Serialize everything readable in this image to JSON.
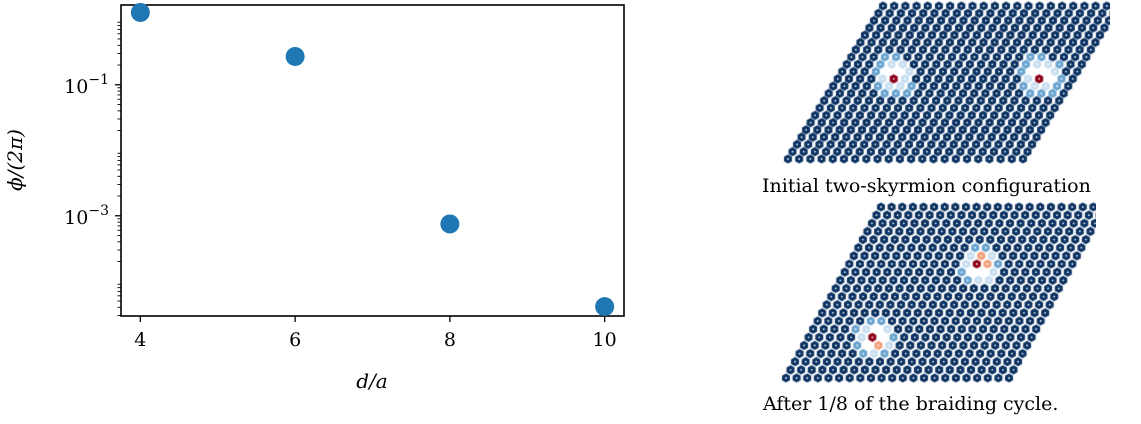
{
  "chart_data": {
    "type": "scatter",
    "x": [
      4,
      6,
      8,
      10
    ],
    "y": [
      1.27,
      0.27,
      0.00075,
      4.1e-05
    ],
    "xlabel": "d/a",
    "ylabel": "ϕ/(2π)",
    "xticks": [
      4,
      6,
      8,
      10
    ],
    "yticks": [
      {
        "value": 0.1,
        "base": "10",
        "exp": "−1"
      },
      {
        "value": 0.001,
        "base": "10",
        "exp": "−3"
      }
    ],
    "yscale": "log",
    "xlim": [
      3.75,
      10.25
    ],
    "ylim": [
      2.95e-05,
      1.65
    ],
    "grid": false,
    "marker_color": "#1f77b4"
  },
  "panels": [
    {
      "caption": "Initial two-skyrmion configuration",
      "skyrmion_centers": [
        [
          0.345,
          0.46
        ],
        [
          0.792,
          0.46
        ]
      ],
      "skyrmion_style": "radial"
    },
    {
      "caption": "After 1/8 of the braiding cycle.",
      "skyrmion_centers": [
        [
          0.635,
          0.355
        ],
        [
          0.303,
          0.75
        ]
      ],
      "skyrmion_style": "tilted"
    }
  ],
  "colors": {
    "lattice": "#0a3161",
    "core": "#8b0016",
    "pale": "#c9dff0",
    "mid": "#6aa4cf",
    "warm": "#f2a07b"
  }
}
